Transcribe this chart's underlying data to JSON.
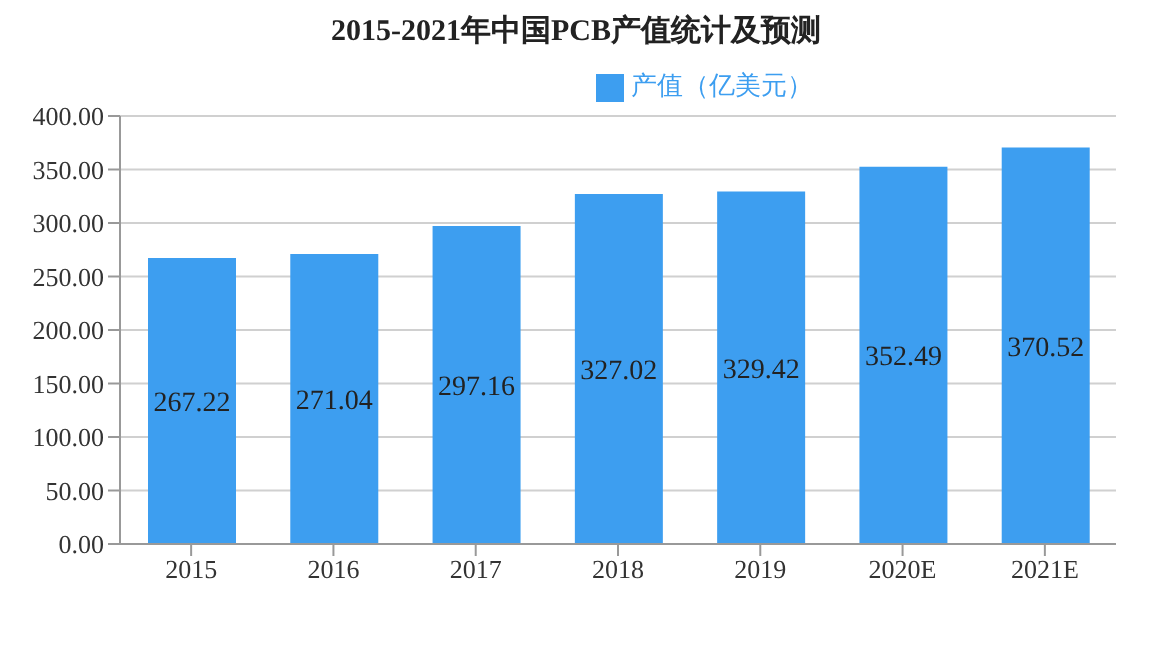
{
  "chart_data": {
    "type": "bar",
    "title": "2015-2021年中国PCB产值统计及预测",
    "categories": [
      "2015",
      "2016",
      "2017",
      "2018",
      "2019",
      "2020E",
      "2021E"
    ],
    "series": [
      {
        "name": "产值（亿美元）",
        "color": "#3d9ef0",
        "values": [
          267.22,
          271.04,
          297.16,
          327.02,
          329.42,
          352.49,
          370.52
        ]
      }
    ],
    "ylim": [
      0,
      400
    ],
    "yticks": [
      {
        "value": 0,
        "label": "0.00"
      },
      {
        "value": 50,
        "label": "50.00"
      },
      {
        "value": 100,
        "label": "100.00"
      },
      {
        "value": 150,
        "label": "150.00"
      },
      {
        "value": 200,
        "label": "200.00"
      },
      {
        "value": 250,
        "label": "250.00"
      },
      {
        "value": 300,
        "label": "300.00"
      },
      {
        "value": 350,
        "label": "350.00"
      },
      {
        "value": 400,
        "label": "400.00"
      }
    ],
    "grid": "y",
    "legend": "top",
    "data_labels": true
  }
}
